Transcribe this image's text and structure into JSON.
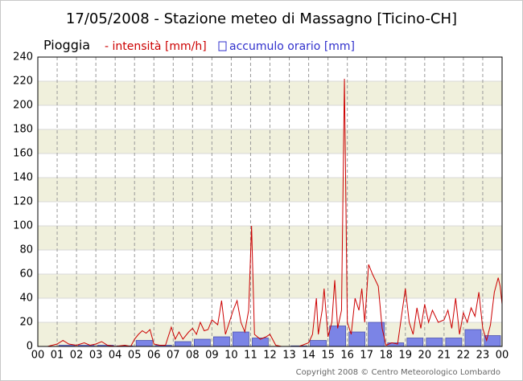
{
  "chart_data": {
    "type": "combo",
    "title": "17/05/2008 - Stazione meteo di Massagno [Ticino-CH]",
    "subtitle": "Pioggia",
    "footer": "Copyright 2008 © Centro Meteorologico Lombardo",
    "xlim": [
      0,
      24
    ],
    "ylim": [
      0,
      240
    ],
    "xticks": [
      {
        "value": 0,
        "label": "00"
      },
      {
        "value": 1,
        "label": "01"
      },
      {
        "value": 2,
        "label": "02"
      },
      {
        "value": 3,
        "label": "03"
      },
      {
        "value": 4,
        "label": "04"
      },
      {
        "value": 5,
        "label": "05"
      },
      {
        "value": 6,
        "label": "06"
      },
      {
        "value": 7,
        "label": "07"
      },
      {
        "value": 8,
        "label": "08"
      },
      {
        "value": 9,
        "label": "09"
      },
      {
        "value": 10,
        "label": "10"
      },
      {
        "value": 11,
        "label": "11"
      },
      {
        "value": 12,
        "label": "12"
      },
      {
        "value": 13,
        "label": "13"
      },
      {
        "value": 14,
        "label": "14"
      },
      {
        "value": 15,
        "label": "15"
      },
      {
        "value": 16,
        "label": "16"
      },
      {
        "value": 17,
        "label": "17"
      },
      {
        "value": 18,
        "label": "18"
      },
      {
        "value": 19,
        "label": "19"
      },
      {
        "value": 20,
        "label": "20"
      },
      {
        "value": 21,
        "label": "21"
      },
      {
        "value": 22,
        "label": "22"
      },
      {
        "value": 23,
        "label": "23"
      },
      {
        "value": 24,
        "label": "00"
      }
    ],
    "yticks": [
      0,
      20,
      40,
      60,
      80,
      100,
      120,
      140,
      160,
      180,
      200,
      220,
      240
    ],
    "grid": true,
    "band_color": "#f0f0dc",
    "series": [
      {
        "name": "- intensità [mm/h]",
        "type": "line",
        "color": "#cc0000",
        "x": [
          0,
          0.5,
          1,
          1.3,
          1.6,
          2,
          2.4,
          2.7,
          3,
          3.3,
          3.6,
          4,
          4.5,
          4.8,
          5,
          5.2,
          5.4,
          5.6,
          5.8,
          6,
          6.3,
          6.6,
          6.9,
          7.1,
          7.3,
          7.5,
          7.8,
          8,
          8.2,
          8.4,
          8.6,
          8.8,
          9,
          9.3,
          9.5,
          9.7,
          9.9,
          10.1,
          10.3,
          10.5,
          10.7,
          10.9,
          11.05,
          11.2,
          11.5,
          11.8,
          12,
          12.3,
          12.6,
          13,
          13.5,
          14,
          14.2,
          14.4,
          14.5,
          14.7,
          14.8,
          15,
          15.2,
          15.35,
          15.5,
          15.7,
          15.85,
          16,
          16.2,
          16.4,
          16.6,
          16.75,
          16.9,
          17.1,
          17.3,
          17.6,
          17.8,
          18,
          18.3,
          18.6,
          19,
          19.2,
          19.4,
          19.6,
          19.8,
          20,
          20.2,
          20.4,
          20.7,
          21,
          21.2,
          21.4,
          21.6,
          21.8,
          22,
          22.2,
          22.4,
          22.6,
          22.8,
          23,
          23.2,
          23.4,
          23.6,
          23.8,
          23.9,
          24
        ],
        "values": [
          0,
          0,
          2,
          5,
          2,
          1,
          3,
          1,
          2,
          4,
          1,
          0,
          1,
          0,
          6,
          10,
          13,
          11,
          14,
          2,
          1,
          1,
          16,
          6,
          12,
          6,
          12,
          15,
          10,
          20,
          13,
          14,
          22,
          18,
          38,
          10,
          20,
          30,
          38,
          20,
          12,
          30,
          100,
          10,
          6,
          8,
          10,
          1,
          0,
          0,
          0,
          3,
          10,
          40,
          10,
          30,
          48,
          8,
          20,
          55,
          15,
          30,
          222,
          20,
          10,
          40,
          30,
          48,
          20,
          68,
          60,
          50,
          15,
          1,
          3,
          2,
          48,
          20,
          10,
          32,
          15,
          35,
          20,
          30,
          20,
          22,
          30,
          15,
          40,
          10,
          28,
          20,
          32,
          25,
          45,
          15,
          5,
          18,
          45,
          57,
          50,
          35
        ]
      },
      {
        "name": "accumulo orario [mm]",
        "type": "bar",
        "color": "#7b84e6",
        "bins": [
          0,
          1,
          2,
          3,
          4,
          5,
          6,
          7,
          8,
          9,
          10,
          11,
          12,
          13,
          14,
          15,
          16,
          17,
          18,
          19,
          20,
          21,
          22,
          23,
          24
        ],
        "values": [
          0,
          1,
          1,
          1,
          0.5,
          5,
          1,
          4,
          6,
          8,
          12,
          7,
          0,
          0.5,
          5,
          17,
          12,
          20,
          3,
          7,
          7,
          7,
          14,
          9
        ]
      }
    ]
  }
}
